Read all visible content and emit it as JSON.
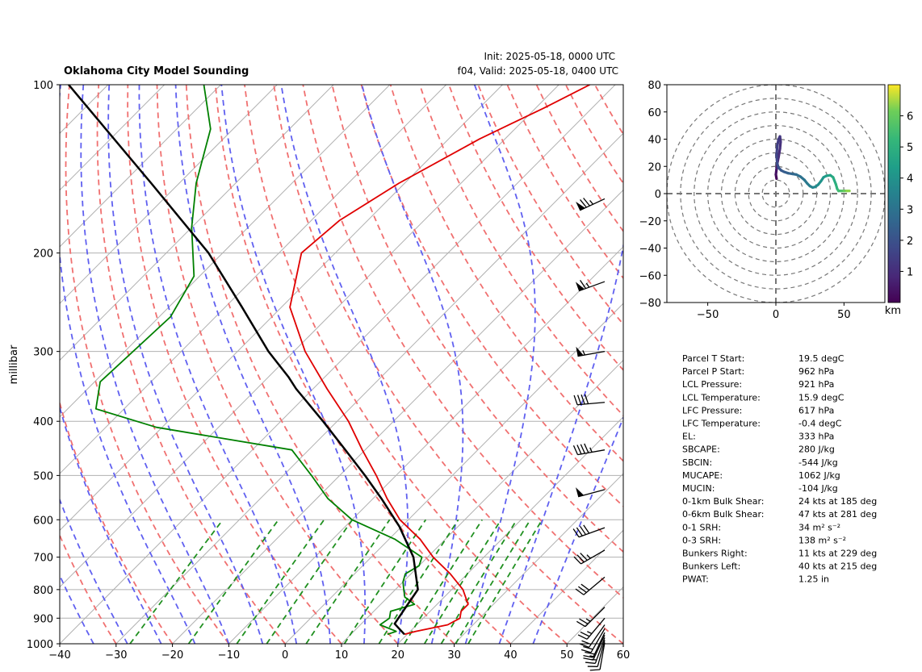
{
  "title": {
    "main": "Oklahoma City Model Sounding",
    "init": "Init: 2025-05-18, 0000 UTC",
    "valid": "f04, Valid: 2025-05-18, 0400 UTC"
  },
  "chart_data": [
    {
      "type": "line",
      "subtype": "skew-t",
      "ylabel": "millibar",
      "xlim": [
        -40,
        60
      ],
      "ylim": [
        1000,
        100
      ],
      "y_scale": "log",
      "x_ticks": [
        -40,
        -30,
        -20,
        -10,
        0,
        10,
        20,
        30,
        40,
        50,
        60
      ],
      "x_tick_labels": [
        "−40",
        "−30",
        "−20",
        "−10",
        "0",
        "10",
        "20",
        "30",
        "40",
        "50",
        "60"
      ],
      "y_ticks": [
        1000,
        900,
        800,
        700,
        600,
        500,
        400,
        300,
        200,
        100
      ],
      "y_tick_labels": [
        "1000",
        "900",
        "800",
        "700",
        "600",
        "500",
        "400",
        "300",
        "200",
        "100"
      ],
      "grid": true,
      "series": [
        {
          "role": "temperature",
          "color": "#e00000",
          "p": [
            962,
            950,
            925,
            900,
            875,
            850,
            800,
            750,
            700,
            650,
            600,
            550,
            500,
            450,
            400,
            350,
            300,
            250,
            200,
            175,
            150,
            125,
            110,
            100
          ],
          "t": [
            19.5,
            21.0,
            25.5,
            26.5,
            25.5,
            25.5,
            22.0,
            17.0,
            11.0,
            5.5,
            -1.5,
            -7.5,
            -13.5,
            -20.5,
            -28.0,
            -37.5,
            -48.0,
            -58.5,
            -66.0,
            -65.0,
            -61.0,
            -54.5,
            -48.5,
            -44.5
          ]
        },
        {
          "role": "dewpoint",
          "color": "#008000",
          "p": [
            962,
            950,
            925,
            900,
            875,
            850,
            825,
            800,
            775,
            750,
            725,
            700,
            650,
            600,
            550,
            500,
            450,
            410,
            380,
            340,
            260,
            220,
            180,
            150,
            120,
            100
          ],
          "t": [
            16.5,
            17.5,
            13.5,
            14.0,
            13.0,
            16.0,
            13.0,
            11.5,
            10.0,
            9.0,
            10.0,
            9.0,
            1.0,
            -10.0,
            -18.0,
            -25.0,
            -33.0,
            -61.0,
            -75.0,
            -79.0,
            -78.0,
            -81.0,
            -90.0,
            -97.0,
            -104.0,
            -113.0
          ]
        },
        {
          "role": "parcel",
          "color": "#000000",
          "p": [
            962,
            921,
            850,
            800,
            700,
            617,
            550,
            500,
            450,
            400,
            350,
            333,
            300,
            250,
            200,
            150,
            100
          ],
          "t": [
            19.5,
            15.9,
            14.8,
            14.0,
            7.5,
            -0.4,
            -8.5,
            -15.5,
            -23.5,
            -32.5,
            -43.0,
            -46.5,
            -54.5,
            -67.0,
            -82.5,
            -105.0,
            -137.0
          ]
        }
      ],
      "wind_barbs": {
        "p": [
          995,
          985,
          975,
          965,
          955,
          940,
          925,
          900,
          860,
          760,
          680,
          620,
          530,
          450,
          370,
          300,
          225,
          160
        ],
        "speed_kt": [
          10,
          12,
          15,
          15,
          18,
          20,
          20,
          24,
          25,
          28,
          35,
          40,
          50,
          45,
          40,
          55,
          65,
          75
        ],
        "direction_deg": [
          190,
          195,
          200,
          205,
          205,
          210,
          215,
          220,
          225,
          230,
          240,
          250,
          255,
          260,
          265,
          260,
          250,
          245
        ]
      },
      "background_lines": {
        "isotherms_color": "#b0b0b0",
        "dry_adiabats_color": "#f07070",
        "moist_adiabats_color": "#6060f0",
        "mixing_ratio_color": "#209020",
        "freezing_isotherm_color": "#8040c0"
      }
    },
    {
      "type": "line",
      "subtype": "hodograph",
      "xlim": [
        -80,
        80
      ],
      "ylim": [
        -80,
        80
      ],
      "x_ticks": [
        -50,
        0,
        50
      ],
      "x_tick_labels": [
        "−50",
        "0",
        "50"
      ],
      "y_ticks": [
        80,
        60,
        40,
        20,
        0,
        -20,
        -40,
        -60,
        -80
      ],
      "y_tick_labels": [
        "80",
        "60",
        "40",
        "20",
        "0",
        "−20",
        "−40",
        "−60",
        "−80"
      ],
      "rings": [
        10,
        20,
        30,
        40,
        50,
        60,
        70,
        80
      ],
      "colorbar": {
        "label": "km",
        "ticks": [
          1,
          2,
          3,
          4,
          5,
          6
        ],
        "range": [
          0,
          7
        ],
        "colormap": "viridis"
      },
      "u": [
        0.5,
        0.0,
        0.5,
        1.0,
        2.0,
        3.0,
        3.5,
        3.0,
        2.0,
        1.0,
        0.5,
        1.0,
        2.0,
        4.0,
        6.0,
        9.0,
        12.0,
        15.0,
        18.0,
        21.0,
        23.0,
        25.0,
        27.0,
        29.0,
        31.0,
        33.0,
        35.0,
        37.0,
        40.0,
        42.0,
        44.0,
        45.0,
        46.0,
        48.0,
        50.0,
        52.0,
        54.0
      ],
      "v": [
        11.0,
        14.0,
        18.0,
        22.0,
        27.0,
        33.0,
        38.0,
        42.0,
        40.0,
        35.0,
        28.0,
        22.0,
        19.0,
        17.0,
        16.0,
        15.0,
        14.5,
        14.0,
        12.5,
        10.0,
        7.5,
        5.5,
        4.5,
        5.0,
        6.5,
        9.0,
        12.0,
        13.0,
        13.5,
        12.0,
        7.0,
        3.5,
        2.0,
        2.0,
        2.0,
        2.0,
        2.0
      ],
      "height_km": [
        0.05,
        0.25,
        0.45,
        0.7,
        0.9,
        1.0,
        1.1,
        1.2,
        1.3,
        1.45,
        1.6,
        1.8,
        2.0,
        2.15,
        2.3,
        2.45,
        2.6,
        2.75,
        2.9,
        3.05,
        3.2,
        3.35,
        3.5,
        3.65,
        3.8,
        3.95,
        4.1,
        4.3,
        4.5,
        4.7,
        4.9,
        5.1,
        5.3,
        5.6,
        5.9,
        6.2,
        6.5
      ]
    }
  ],
  "stats": [
    {
      "label": "Parcel T Start:",
      "value": "19.5 degC"
    },
    {
      "label": "Parcel P Start:",
      "value": "962 hPa"
    },
    {
      "label": "LCL Pressure:",
      "value": "921 hPa"
    },
    {
      "label": "LCL Temperature:",
      "value": "15.9 degC"
    },
    {
      "label": "LFC Pressure:",
      "value": "617 hPa"
    },
    {
      "label": "LFC Temperature:",
      "value": "-0.4 degC"
    },
    {
      "label": "EL:",
      "value": "333 hPa"
    },
    {
      "label": "SBCAPE:",
      "value": "280 J/kg"
    },
    {
      "label": "SBCIN:",
      "value": "-544 J/kg"
    },
    {
      "label": "MUCAPE:",
      "value": "1062 J/kg"
    },
    {
      "label": "MUCIN:",
      "value": "-104 J/kg"
    },
    {
      "label": "0-1km Bulk Shear:",
      "value": "24 kts at 185 deg"
    },
    {
      "label": "0-6km Bulk Shear:",
      "value": "47 kts at 281 deg"
    },
    {
      "label": "0-1 SRH:",
      "value": "34 m² s⁻²"
    },
    {
      "label": "0-3 SRH:",
      "value": "138 m² s⁻²"
    },
    {
      "label": "Bunkers Right:",
      "value": "11 kts at 229 deg"
    },
    {
      "label": "Bunkers Left:",
      "value": "40 kts at 215 deg"
    },
    {
      "label": "PWAT:",
      "value": "1.25 in"
    }
  ]
}
